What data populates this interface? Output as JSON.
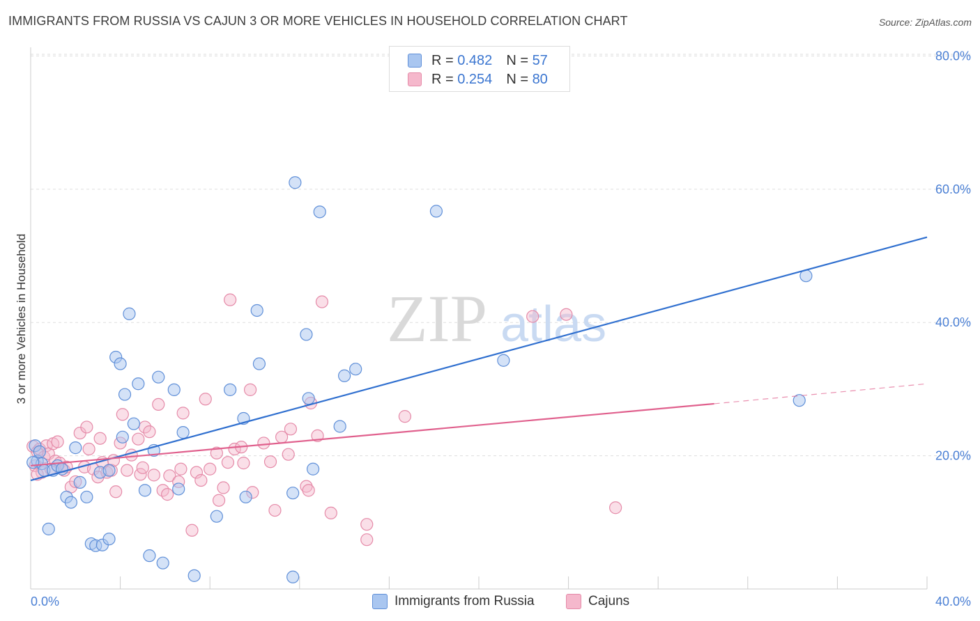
{
  "header": {
    "title": "IMMIGRANTS FROM RUSSIA VS CAJUN 3 OR MORE VEHICLES IN HOUSEHOLD CORRELATION CHART",
    "source": "Source: ZipAtlas.com"
  },
  "watermark": {
    "text_zip": "ZIP",
    "text_atlas": "atlas"
  },
  "legend": {
    "rows": [
      {
        "r_label": "R = ",
        "r_value": "0.482",
        "n_label": "N = ",
        "n_value": "57",
        "color": "#a9c6f0"
      },
      {
        "r_label": "R = ",
        "r_value": "0.254",
        "n_label": "N = ",
        "n_value": "80",
        "color": "#f5b8cc"
      }
    ]
  },
  "bottom_legend": {
    "series1": "Immigrants from Russia",
    "series2": "Cajuns"
  },
  "colors": {
    "blue_fill": "#a9c6f0",
    "blue_stroke": "#5f8fd8",
    "blue_line": "#2f6fcf",
    "pink_fill": "#f5b8cc",
    "pink_stroke": "#e58aa8",
    "pink_line": "#e0608d",
    "grid": "#dddddd",
    "tick_text": "#4a7fd4"
  },
  "chart_data": {
    "type": "scatter",
    "title": "IMMIGRANTS FROM RUSSIA VS CAJUN 3 OR MORE VEHICLES IN HOUSEHOLD CORRELATION CHART",
    "xlabel": "",
    "ylabel": "3 or more Vehicles in Household",
    "xlim": [
      0,
      40
    ],
    "ylim": [
      0,
      80
    ],
    "x_tick_labels": [
      "0.0%",
      "40.0%"
    ],
    "y_tick_labels": [
      "20.0%",
      "40.0%",
      "60.0%",
      "80.0%"
    ],
    "y_tick_values": [
      20,
      40,
      60,
      80
    ],
    "grid": true,
    "legend_position": "top-center",
    "series": [
      {
        "name": "Immigrants from Russia",
        "trend": {
          "x": [
            0,
            40
          ],
          "y": [
            16.3,
            52.8
          ],
          "style": "solid"
        },
        "points": [
          [
            0.2,
            21.5
          ],
          [
            0.3,
            19.2
          ],
          [
            0.5,
            18.8
          ],
          [
            0.6,
            17.8
          ],
          [
            0.8,
            9.0
          ],
          [
            1.0,
            17.8
          ],
          [
            1.2,
            18.5
          ],
          [
            1.4,
            18.0
          ],
          [
            1.6,
            13.8
          ],
          [
            1.8,
            13.0
          ],
          [
            2.0,
            21.2
          ],
          [
            2.2,
            16.0
          ],
          [
            2.5,
            13.8
          ],
          [
            2.7,
            6.8
          ],
          [
            2.9,
            6.5
          ],
          [
            3.1,
            17.5
          ],
          [
            3.2,
            6.6
          ],
          [
            3.5,
            7.5
          ],
          [
            3.5,
            17.8
          ],
          [
            3.8,
            34.8
          ],
          [
            4.0,
            33.8
          ],
          [
            4.1,
            22.8
          ],
          [
            4.2,
            29.2
          ],
          [
            4.4,
            41.3
          ],
          [
            4.6,
            24.8
          ],
          [
            4.8,
            30.8
          ],
          [
            5.1,
            14.8
          ],
          [
            5.3,
            5.0
          ],
          [
            5.5,
            20.8
          ],
          [
            5.7,
            31.8
          ],
          [
            5.9,
            3.9
          ],
          [
            6.4,
            29.9
          ],
          [
            6.6,
            15.0
          ],
          [
            6.8,
            23.5
          ],
          [
            7.3,
            2.0
          ],
          [
            8.3,
            10.9
          ],
          [
            8.9,
            29.9
          ],
          [
            9.5,
            25.6
          ],
          [
            9.6,
            13.8
          ],
          [
            10.1,
            41.8
          ],
          [
            10.2,
            33.8
          ],
          [
            11.7,
            14.4
          ],
          [
            11.7,
            1.8
          ],
          [
            11.8,
            61.0
          ],
          [
            12.3,
            38.2
          ],
          [
            12.4,
            28.6
          ],
          [
            12.6,
            18.0
          ],
          [
            12.9,
            56.6
          ],
          [
            13.8,
            24.4
          ],
          [
            14.0,
            32.0
          ],
          [
            14.5,
            33.0
          ],
          [
            18.1,
            56.7
          ],
          [
            21.1,
            34.3
          ],
          [
            34.3,
            28.3
          ],
          [
            34.6,
            47.0
          ],
          [
            0.1,
            19.0
          ],
          [
            0.4,
            20.6
          ]
        ]
      },
      {
        "name": "Cajuns",
        "trend": {
          "x": [
            0,
            30.5
          ],
          "y": [
            18.5,
            27.8
          ],
          "style": "solid",
          "extension_x": [
            30.5,
            40
          ],
          "extension_y": [
            27.8,
            30.8
          ],
          "extension_style": "dashed"
        },
        "points": [
          [
            0.1,
            21.4
          ],
          [
            0.2,
            18.5
          ],
          [
            0.3,
            20.6
          ],
          [
            0.4,
            21.0
          ],
          [
            0.5,
            17.5
          ],
          [
            0.6,
            19.8
          ],
          [
            0.7,
            21.5
          ],
          [
            0.8,
            20.3
          ],
          [
            0.9,
            18.0
          ],
          [
            1.0,
            21.8
          ],
          [
            1.1,
            19.2
          ],
          [
            1.2,
            22.1
          ],
          [
            1.3,
            18.9
          ],
          [
            1.5,
            17.8
          ],
          [
            1.6,
            18.3
          ],
          [
            1.8,
            15.3
          ],
          [
            2.0,
            16.1
          ],
          [
            2.2,
            23.4
          ],
          [
            2.4,
            18.3
          ],
          [
            2.5,
            24.3
          ],
          [
            2.6,
            21.0
          ],
          [
            2.8,
            18.0
          ],
          [
            3.0,
            16.8
          ],
          [
            3.1,
            22.6
          ],
          [
            3.2,
            19.0
          ],
          [
            3.4,
            17.5
          ],
          [
            3.6,
            17.8
          ],
          [
            3.7,
            19.3
          ],
          [
            3.8,
            14.6
          ],
          [
            4.0,
            21.9
          ],
          [
            4.1,
            26.2
          ],
          [
            4.3,
            17.8
          ],
          [
            4.5,
            20.1
          ],
          [
            4.8,
            22.5
          ],
          [
            4.9,
            17.2
          ],
          [
            5.0,
            18.2
          ],
          [
            5.1,
            24.3
          ],
          [
            5.3,
            23.6
          ],
          [
            5.5,
            17.1
          ],
          [
            5.7,
            27.7
          ],
          [
            5.9,
            14.8
          ],
          [
            6.1,
            14.2
          ],
          [
            6.2,
            17.0
          ],
          [
            6.6,
            16.1
          ],
          [
            6.7,
            18.0
          ],
          [
            6.8,
            26.4
          ],
          [
            7.2,
            8.8
          ],
          [
            7.4,
            17.5
          ],
          [
            7.6,
            16.3
          ],
          [
            7.8,
            28.5
          ],
          [
            8.0,
            18.0
          ],
          [
            8.3,
            20.4
          ],
          [
            8.4,
            13.3
          ],
          [
            8.6,
            15.2
          ],
          [
            8.8,
            19.0
          ],
          [
            8.9,
            43.4
          ],
          [
            9.1,
            21.0
          ],
          [
            9.4,
            21.3
          ],
          [
            9.5,
            18.9
          ],
          [
            9.8,
            29.9
          ],
          [
            9.9,
            14.5
          ],
          [
            10.4,
            21.9
          ],
          [
            10.7,
            19.1
          ],
          [
            10.9,
            11.8
          ],
          [
            11.2,
            22.8
          ],
          [
            11.5,
            20.2
          ],
          [
            11.6,
            24.0
          ],
          [
            12.3,
            15.4
          ],
          [
            12.4,
            14.8
          ],
          [
            12.5,
            27.9
          ],
          [
            12.8,
            23.0
          ],
          [
            13.0,
            43.1
          ],
          [
            13.4,
            11.4
          ],
          [
            15.0,
            9.7
          ],
          [
            15.0,
            7.4
          ],
          [
            16.7,
            25.9
          ],
          [
            22.4,
            40.9
          ],
          [
            23.9,
            41.2
          ],
          [
            26.1,
            12.2
          ],
          [
            0.3,
            17.2
          ]
        ]
      }
    ]
  }
}
